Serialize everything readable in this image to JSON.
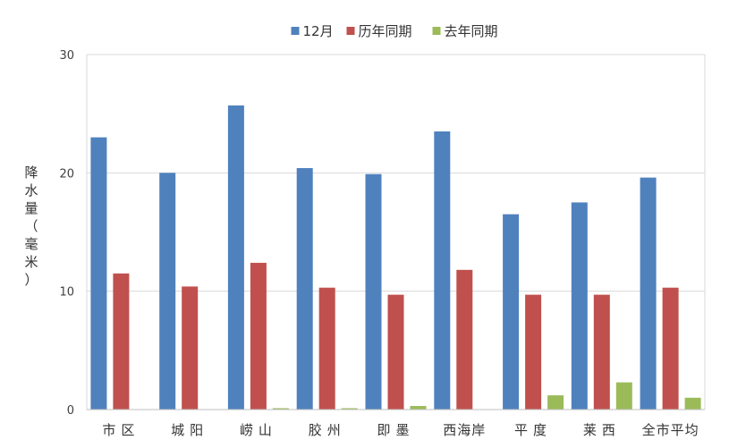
{
  "chart_data": {
    "type": "bar",
    "title": "",
    "xlabel": "",
    "ylabel": "降水量（毫米）",
    "ylabel_chars": [
      "降",
      "水",
      "量",
      "（",
      "毫",
      "米",
      "）"
    ],
    "ylim": [
      0,
      30
    ],
    "yticks": [
      0,
      10,
      20,
      30
    ],
    "grid": true,
    "legend_position": "top",
    "categories": [
      "市区",
      "城阳",
      "崂山",
      "胶州",
      "即墨",
      "西海岸",
      "平度",
      "莱西",
      "全市平均"
    ],
    "series": [
      {
        "name": "12月",
        "color": "#4f81bd",
        "values": [
          23.0,
          20.0,
          25.7,
          20.4,
          19.9,
          23.5,
          16.5,
          17.5,
          19.6
        ]
      },
      {
        "name": "历年同期",
        "color": "#c0504d",
        "values": [
          11.5,
          10.4,
          12.4,
          10.3,
          9.7,
          11.8,
          9.7,
          9.7,
          10.3
        ]
      },
      {
        "name": "去年同期",
        "color": "#9bbb59",
        "values": [
          0.0,
          0.0,
          0.1,
          0.1,
          0.3,
          0.0,
          1.2,
          2.3,
          1.0
        ]
      }
    ]
  }
}
